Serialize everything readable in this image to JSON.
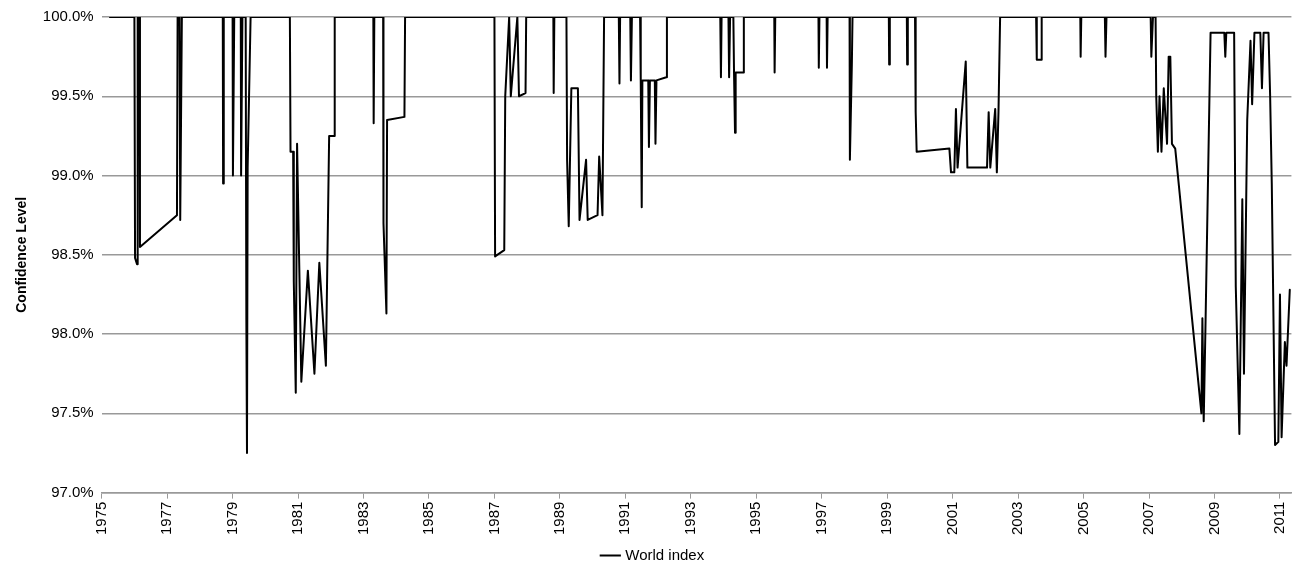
{
  "chart_data": {
    "type": "line",
    "ylabel": "Confidence Level",
    "xlim": [
      1975,
      2011.35
    ],
    "xticks": [
      1975,
      1977,
      1979,
      1981,
      1983,
      1985,
      1987,
      1989,
      1991,
      1993,
      1995,
      1997,
      1999,
      2001,
      2003,
      2005,
      2007,
      2009,
      2011
    ],
    "ylim": [
      97,
      100
    ],
    "yticks": [
      {
        "value": 97,
        "label": "97.0%"
      },
      {
        "value": 97.5,
        "label": "97.5%"
      },
      {
        "value": 98,
        "label": "98.0%"
      },
      {
        "value": 98.5,
        "label": "98.5%"
      },
      {
        "value": 99,
        "label": "99.0%"
      },
      {
        "value": 99.5,
        "label": "99.5%"
      },
      {
        "value": 100,
        "label": "100.0%"
      }
    ],
    "grid": "y",
    "legend": "bottom",
    "marker": "none",
    "line_style": "solid",
    "series": [
      {
        "name": "World index",
        "color": "#000000",
        "x": [
          1975.25,
          1976.0,
          1976.02,
          1976.08,
          1976.1,
          1976.15,
          1976.17,
          1977.3,
          1977.32,
          1977.38,
          1977.4,
          1977.45,
          1978.7,
          1978.71,
          1978.73,
          1979.0,
          1979.01,
          1979.05,
          1979.25,
          1979.26,
          1979.3,
          1979.4,
          1979.42,
          1979.44,
          1979.46,
          1979.55,
          1980.75,
          1980.77,
          1980.85,
          1980.87,
          1980.93,
          1980.97,
          1981.1,
          1981.3,
          1981.5,
          1981.65,
          1981.85,
          1981.95,
          1982.1,
          1982.12,
          1983.3,
          1983.31,
          1983.33,
          1983.6,
          1983.61,
          1983.7,
          1983.72,
          1984.25,
          1984.27,
          1987.0,
          1987.02,
          1987.3,
          1987.33,
          1987.45,
          1987.5,
          1987.7,
          1987.75,
          1987.95,
          1987.97,
          1988.8,
          1988.81,
          1988.83,
          1989.2,
          1989.22,
          1989.27,
          1989.35,
          1989.55,
          1989.6,
          1989.8,
          1989.85,
          1990.15,
          1990.2,
          1990.3,
          1990.35,
          1990.8,
          1990.82,
          1990.84,
          1991.15,
          1991.17,
          1991.2,
          1991.45,
          1991.47,
          1991.5,
          1991.52,
          1991.7,
          1991.72,
          1991.75,
          1991.9,
          1991.92,
          1991.95,
          1992.25,
          1992.27,
          1993.9,
          1993.92,
          1993.94,
          1994.15,
          1994.17,
          1994.2,
          1994.3,
          1994.32,
          1994.35,
          1994.37,
          1994.6,
          1994.62,
          1995.55,
          1995.56,
          1995.58,
          1996.9,
          1996.91,
          1996.93,
          1997.15,
          1997.16,
          1997.18,
          1997.85,
          1997.86,
          1997.92,
          1997.94,
          1999.05,
          1999.06,
          1999.08,
          1999.6,
          1999.61,
          1999.63,
          1999.85,
          1999.87,
          1999.9,
          2000.9,
          2000.95,
          2001.05,
          2001.1,
          2001.15,
          2001.4,
          2001.45,
          2002.05,
          2002.1,
          2002.15,
          2002.3,
          2002.35,
          2002.4,
          2002.45,
          2003.55,
          2003.57,
          2003.7,
          2003.72,
          2004.9,
          2004.91,
          2004.93,
          2005.65,
          2005.67,
          2005.7,
          2007.05,
          2007.07,
          2007.12,
          2007.2,
          2007.22,
          2007.27,
          2007.32,
          2007.38,
          2007.45,
          2007.55,
          2007.6,
          2007.65,
          2007.7,
          2007.8,
          2008.6,
          2008.63,
          2008.67,
          2008.72,
          2008.88,
          2009.3,
          2009.33,
          2009.36,
          2009.6,
          2009.65,
          2009.76,
          2009.85,
          2009.9,
          2010.0,
          2010.1,
          2010.15,
          2010.22,
          2010.4,
          2010.45,
          2010.5,
          2010.65,
          2010.7,
          2010.75,
          2010.85,
          2010.95,
          2011.0,
          2011.05,
          2011.15,
          2011.2,
          2011.3
        ],
        "values": [
          100,
          100,
          98.48,
          98.44,
          100,
          100,
          98.55,
          98.75,
          100,
          100,
          98.72,
          100,
          100,
          98.95,
          100,
          100,
          99.0,
          100,
          100,
          99.0,
          100,
          100,
          98.1,
          97.25,
          99.05,
          100,
          100,
          99.15,
          99.15,
          98.33,
          97.63,
          99.2,
          97.7,
          98.4,
          97.75,
          98.45,
          97.8,
          99.25,
          99.25,
          100,
          100,
          99.33,
          100,
          100,
          98.7,
          98.13,
          99.35,
          99.37,
          100,
          100,
          98.49,
          98.53,
          99.5,
          100,
          99.5,
          100,
          99.5,
          99.52,
          100,
          100,
          99.52,
          100,
          100,
          99.1,
          98.68,
          99.55,
          99.55,
          98.72,
          99.1,
          98.72,
          98.75,
          99.12,
          98.75,
          100,
          100,
          99.58,
          100,
          100,
          99.6,
          100,
          100,
          99.6,
          98.8,
          99.6,
          99.6,
          99.18,
          99.6,
          99.6,
          99.2,
          99.6,
          99.62,
          100,
          100,
          99.62,
          100,
          100,
          99.62,
          100,
          100,
          99.65,
          99.27,
          99.65,
          99.65,
          100,
          100,
          99.65,
          100,
          100,
          99.68,
          100,
          100,
          99.68,
          100,
          100,
          99.1,
          99.7,
          100,
          100,
          99.7,
          100,
          100,
          99.7,
          100,
          100,
          99.4,
          99.15,
          99.17,
          99.02,
          99.02,
          99.42,
          99.05,
          99.72,
          99.05,
          99.05,
          99.4,
          99.05,
          99.42,
          99.02,
          99.4,
          100,
          100,
          99.73,
          99.73,
          100,
          100,
          99.75,
          100,
          100,
          99.75,
          100,
          100,
          99.75,
          100,
          100,
          99.5,
          99.15,
          99.5,
          99.15,
          99.55,
          99.2,
          99.75,
          99.75,
          99.2,
          99.17,
          97.5,
          98.1,
          97.45,
          98.0,
          99.9,
          99.9,
          99.75,
          99.9,
          99.9,
          98.3,
          97.37,
          98.85,
          97.75,
          99.35,
          99.85,
          99.45,
          99.9,
          99.9,
          99.55,
          99.9,
          99.9,
          99.5,
          98.95,
          97.3,
          97.32,
          98.25,
          97.35,
          97.95,
          97.8,
          98.28
        ]
      }
    ]
  }
}
